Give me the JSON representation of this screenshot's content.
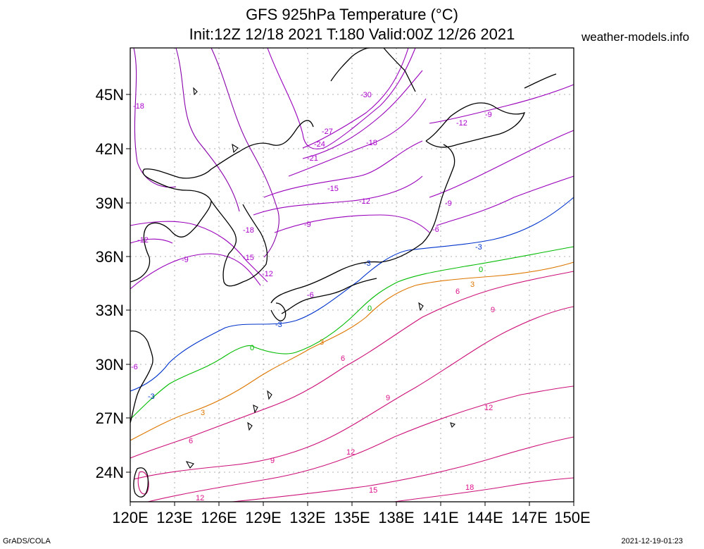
{
  "title_line1": "GFS 925hPa Temperature (°C)",
  "title_line2": "Init:12Z 12/18 2021 T:180 Valid:00Z 12/26 2021",
  "site": "weather-models.info",
  "footer_left": "GrADS/COLA",
  "footer_right": "2021-12-19-01:23",
  "lat_labels": [
    "45N",
    "42N",
    "39N",
    "36N",
    "33N",
    "30N",
    "27N",
    "24N"
  ],
  "lon_labels": [
    "120E",
    "123E",
    "126E",
    "129E",
    "132E",
    "135E",
    "138E",
    "141E",
    "144E",
    "147E",
    "150E"
  ],
  "contour_labels": [
    {
      "text": "-30",
      "color": "#aa00cc"
    },
    {
      "text": "-27",
      "color": "#aa00cc"
    },
    {
      "text": "-24",
      "color": "#aa00cc"
    },
    {
      "text": "-21",
      "color": "#aa00cc"
    },
    {
      "text": "-18",
      "color": "#aa00cc"
    },
    {
      "text": "-18",
      "color": "#aa00cc"
    },
    {
      "text": "-18",
      "color": "#aa00cc"
    },
    {
      "text": "-15",
      "color": "#aa00cc"
    },
    {
      "text": "-15",
      "color": "#aa00cc"
    },
    {
      "text": "-12",
      "color": "#aa00cc"
    },
    {
      "text": "-12",
      "color": "#aa00cc"
    },
    {
      "text": "-12",
      "color": "#aa00cc"
    },
    {
      "text": "-12",
      "color": "#aa00cc"
    },
    {
      "text": "-9",
      "color": "#aa00cc"
    },
    {
      "text": "-9",
      "color": "#aa00cc"
    },
    {
      "text": "-9",
      "color": "#aa00cc"
    },
    {
      "text": "-9",
      "color": "#aa00cc"
    },
    {
      "text": "-6",
      "color": "#aa00cc"
    },
    {
      "text": "-6",
      "color": "#aa00cc"
    },
    {
      "text": "-6",
      "color": "#aa00cc"
    },
    {
      "text": "-3",
      "color": "#0033cc"
    },
    {
      "text": "-3",
      "color": "#0033cc"
    },
    {
      "text": "-3",
      "color": "#0033cc"
    },
    {
      "text": "-3",
      "color": "#0033cc"
    },
    {
      "text": "0",
      "color": "#00bb00"
    },
    {
      "text": "0",
      "color": "#00bb00"
    },
    {
      "text": "0",
      "color": "#00bb00"
    },
    {
      "text": "3",
      "color": "#dd7700"
    },
    {
      "text": "3",
      "color": "#dd7700"
    },
    {
      "text": "3",
      "color": "#dd7700"
    },
    {
      "text": "6",
      "color": "#dd1188"
    },
    {
      "text": "6",
      "color": "#dd1188"
    },
    {
      "text": "6",
      "color": "#dd1188"
    },
    {
      "text": "9",
      "color": "#dd1188"
    },
    {
      "text": "9",
      "color": "#dd1188"
    },
    {
      "text": "9",
      "color": "#dd1188"
    },
    {
      "text": "12",
      "color": "#dd1188"
    },
    {
      "text": "12",
      "color": "#dd1188"
    },
    {
      "text": "12",
      "color": "#dd1188"
    },
    {
      "text": "15",
      "color": "#dd1188"
    },
    {
      "text": "18",
      "color": "#dd1188"
    }
  ]
}
